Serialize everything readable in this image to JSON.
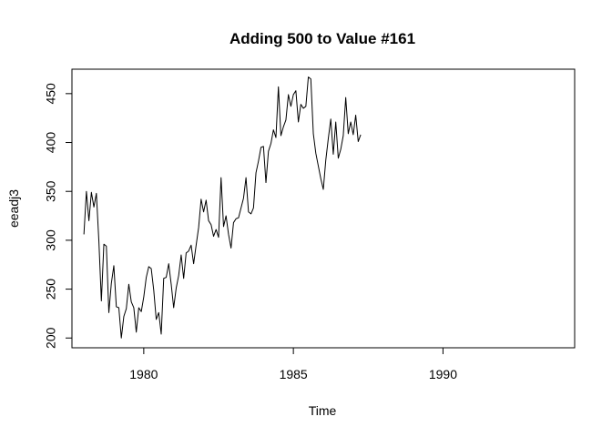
{
  "chart_data": {
    "type": "line",
    "title": "Adding 500 to Value #161",
    "xlabel": "Time",
    "ylabel": "eeadj3",
    "xlim": [
      1977.6,
      1994.4
    ],
    "ylim": [
      190,
      475
    ],
    "x_ticks": [
      1980,
      1985,
      1990
    ],
    "x_tick_labels": [
      "1980",
      "1985",
      "1990"
    ],
    "y_ticks": [
      200,
      250,
      300,
      350,
      400,
      450
    ],
    "y_tick_labels": [
      "200",
      "250",
      "300",
      "350",
      "400",
      "450"
    ],
    "grid": false,
    "legend": "none",
    "series": [
      {
        "color": "#000000",
        "x_start": 1978.0,
        "x_step": 0.0833333,
        "values": [
          306,
          350,
          320,
          349,
          334,
          348,
          299,
          238,
          296,
          294,
          226,
          256,
          274,
          232,
          231,
          200,
          222,
          230,
          255,
          237,
          231,
          206,
          231,
          227,
          242,
          262,
          273,
          271,
          249,
          219,
          226,
          204,
          261,
          262,
          276,
          255,
          231,
          251,
          264,
          285,
          261,
          287,
          289,
          295,
          276,
          295,
          313,
          342,
          329,
          341,
          320,
          316,
          304,
          311,
          303,
          364,
          314,
          325,
          306,
          292,
          318,
          322,
          323,
          333,
          343,
          364,
          329,
          327,
          333,
          369,
          381,
          395,
          396,
          359,
          391,
          399,
          413,
          405,
          457,
          407,
          416,
          423,
          449,
          437,
          449,
          453,
          421,
          439,
          435,
          437,
          467,
          465,
          409,
          389,
          376,
          363,
          352,
          382,
          404,
          424,
          388,
          421,
          384,
          393,
          407,
          446,
          409,
          421,
          408,
          428,
          401,
          408
        ]
      }
    ]
  }
}
